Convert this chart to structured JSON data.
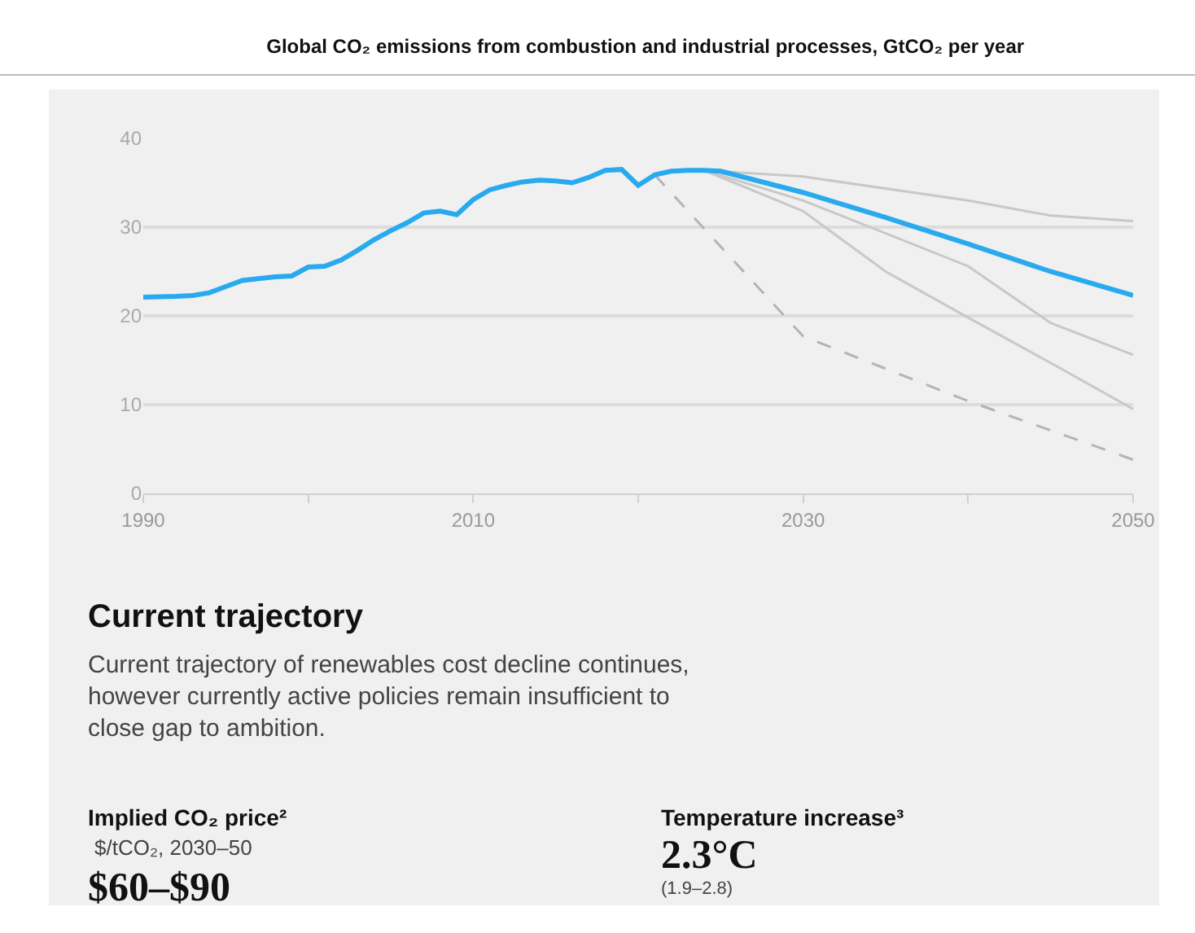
{
  "chart_data": {
    "type": "line",
    "title": "Global CO₂ emissions from combustion and industrial processes, GtCO₂ per year",
    "xlim": [
      1990,
      2050
    ],
    "xticks": [
      1990,
      {
        "value": 2000,
        "label": null
      },
      2010,
      {
        "value": 2020,
        "label": null
      },
      2030,
      {
        "value": 2040,
        "label": null
      },
      2050
    ],
    "ylim": [
      0,
      40
    ],
    "yticks": [
      0,
      10,
      20,
      30,
      40
    ],
    "grid": "y",
    "marker": "none",
    "series": [
      {
        "color": "#c8c8c8",
        "line_style": "solid",
        "x": [
          2024,
          2030,
          2040,
          2045,
          2050
        ],
        "values": [
          36.4,
          35.7,
          33.0,
          31.3,
          30.7
        ]
      },
      {
        "color": "#c8c8c8",
        "line_style": "solid",
        "x": [
          2024,
          2030,
          2040,
          2045,
          2050
        ],
        "values": [
          36.4,
          33.0,
          25.6,
          19.2,
          15.6
        ]
      },
      {
        "color": "#c8c8c8",
        "line_style": "solid",
        "x": [
          2024,
          2030,
          2035,
          2040,
          2045,
          2050
        ],
        "values": [
          36.4,
          31.8,
          25.0,
          19.8,
          14.7,
          9.5
        ]
      },
      {
        "color": "#b4b4b4",
        "line_style": "dashed",
        "x": [
          2021,
          2030,
          2040,
          2050
        ],
        "values": [
          35.9,
          17.7,
          10.4,
          3.8
        ]
      },
      {
        "color": "#29aaef",
        "line_style": "solid",
        "x": [
          1990,
          1992,
          1993,
          1994,
          1995,
          1996,
          1997,
          1998,
          1999,
          2000,
          2001,
          2002,
          2003,
          2004,
          2005,
          2006,
          2007,
          2008,
          2009,
          2010,
          2011,
          2012,
          2013,
          2014,
          2015,
          2016,
          2017,
          2018,
          2019,
          2020,
          2021,
          2022,
          2023,
          2024,
          2025,
          2030,
          2035,
          2040,
          2045,
          2050
        ],
        "values": [
          22.1,
          22.2,
          22.3,
          22.6,
          23.3,
          24.0,
          24.2,
          24.4,
          24.5,
          25.5,
          25.6,
          26.3,
          27.4,
          28.6,
          29.6,
          30.5,
          31.6,
          31.8,
          31.4,
          33.1,
          34.2,
          34.7,
          35.1,
          35.3,
          35.2,
          35.0,
          35.6,
          36.4,
          36.5,
          34.7,
          35.9,
          36.3,
          36.4,
          36.4,
          36.3,
          33.9,
          31.1,
          28.1,
          25.0,
          22.3
        ]
      }
    ],
    "annotations": [
      "Current trajectory",
      "Current trajectory of renewables cost decline continues, however currently active policies remain insufficient to close gap to ambition.",
      "Implied CO₂ price²",
      "$/tCO₂, 2030–50",
      "$60–$90",
      "Temperature increase³",
      "2.3°C",
      "(1.9–2.8)"
    ]
  }
}
